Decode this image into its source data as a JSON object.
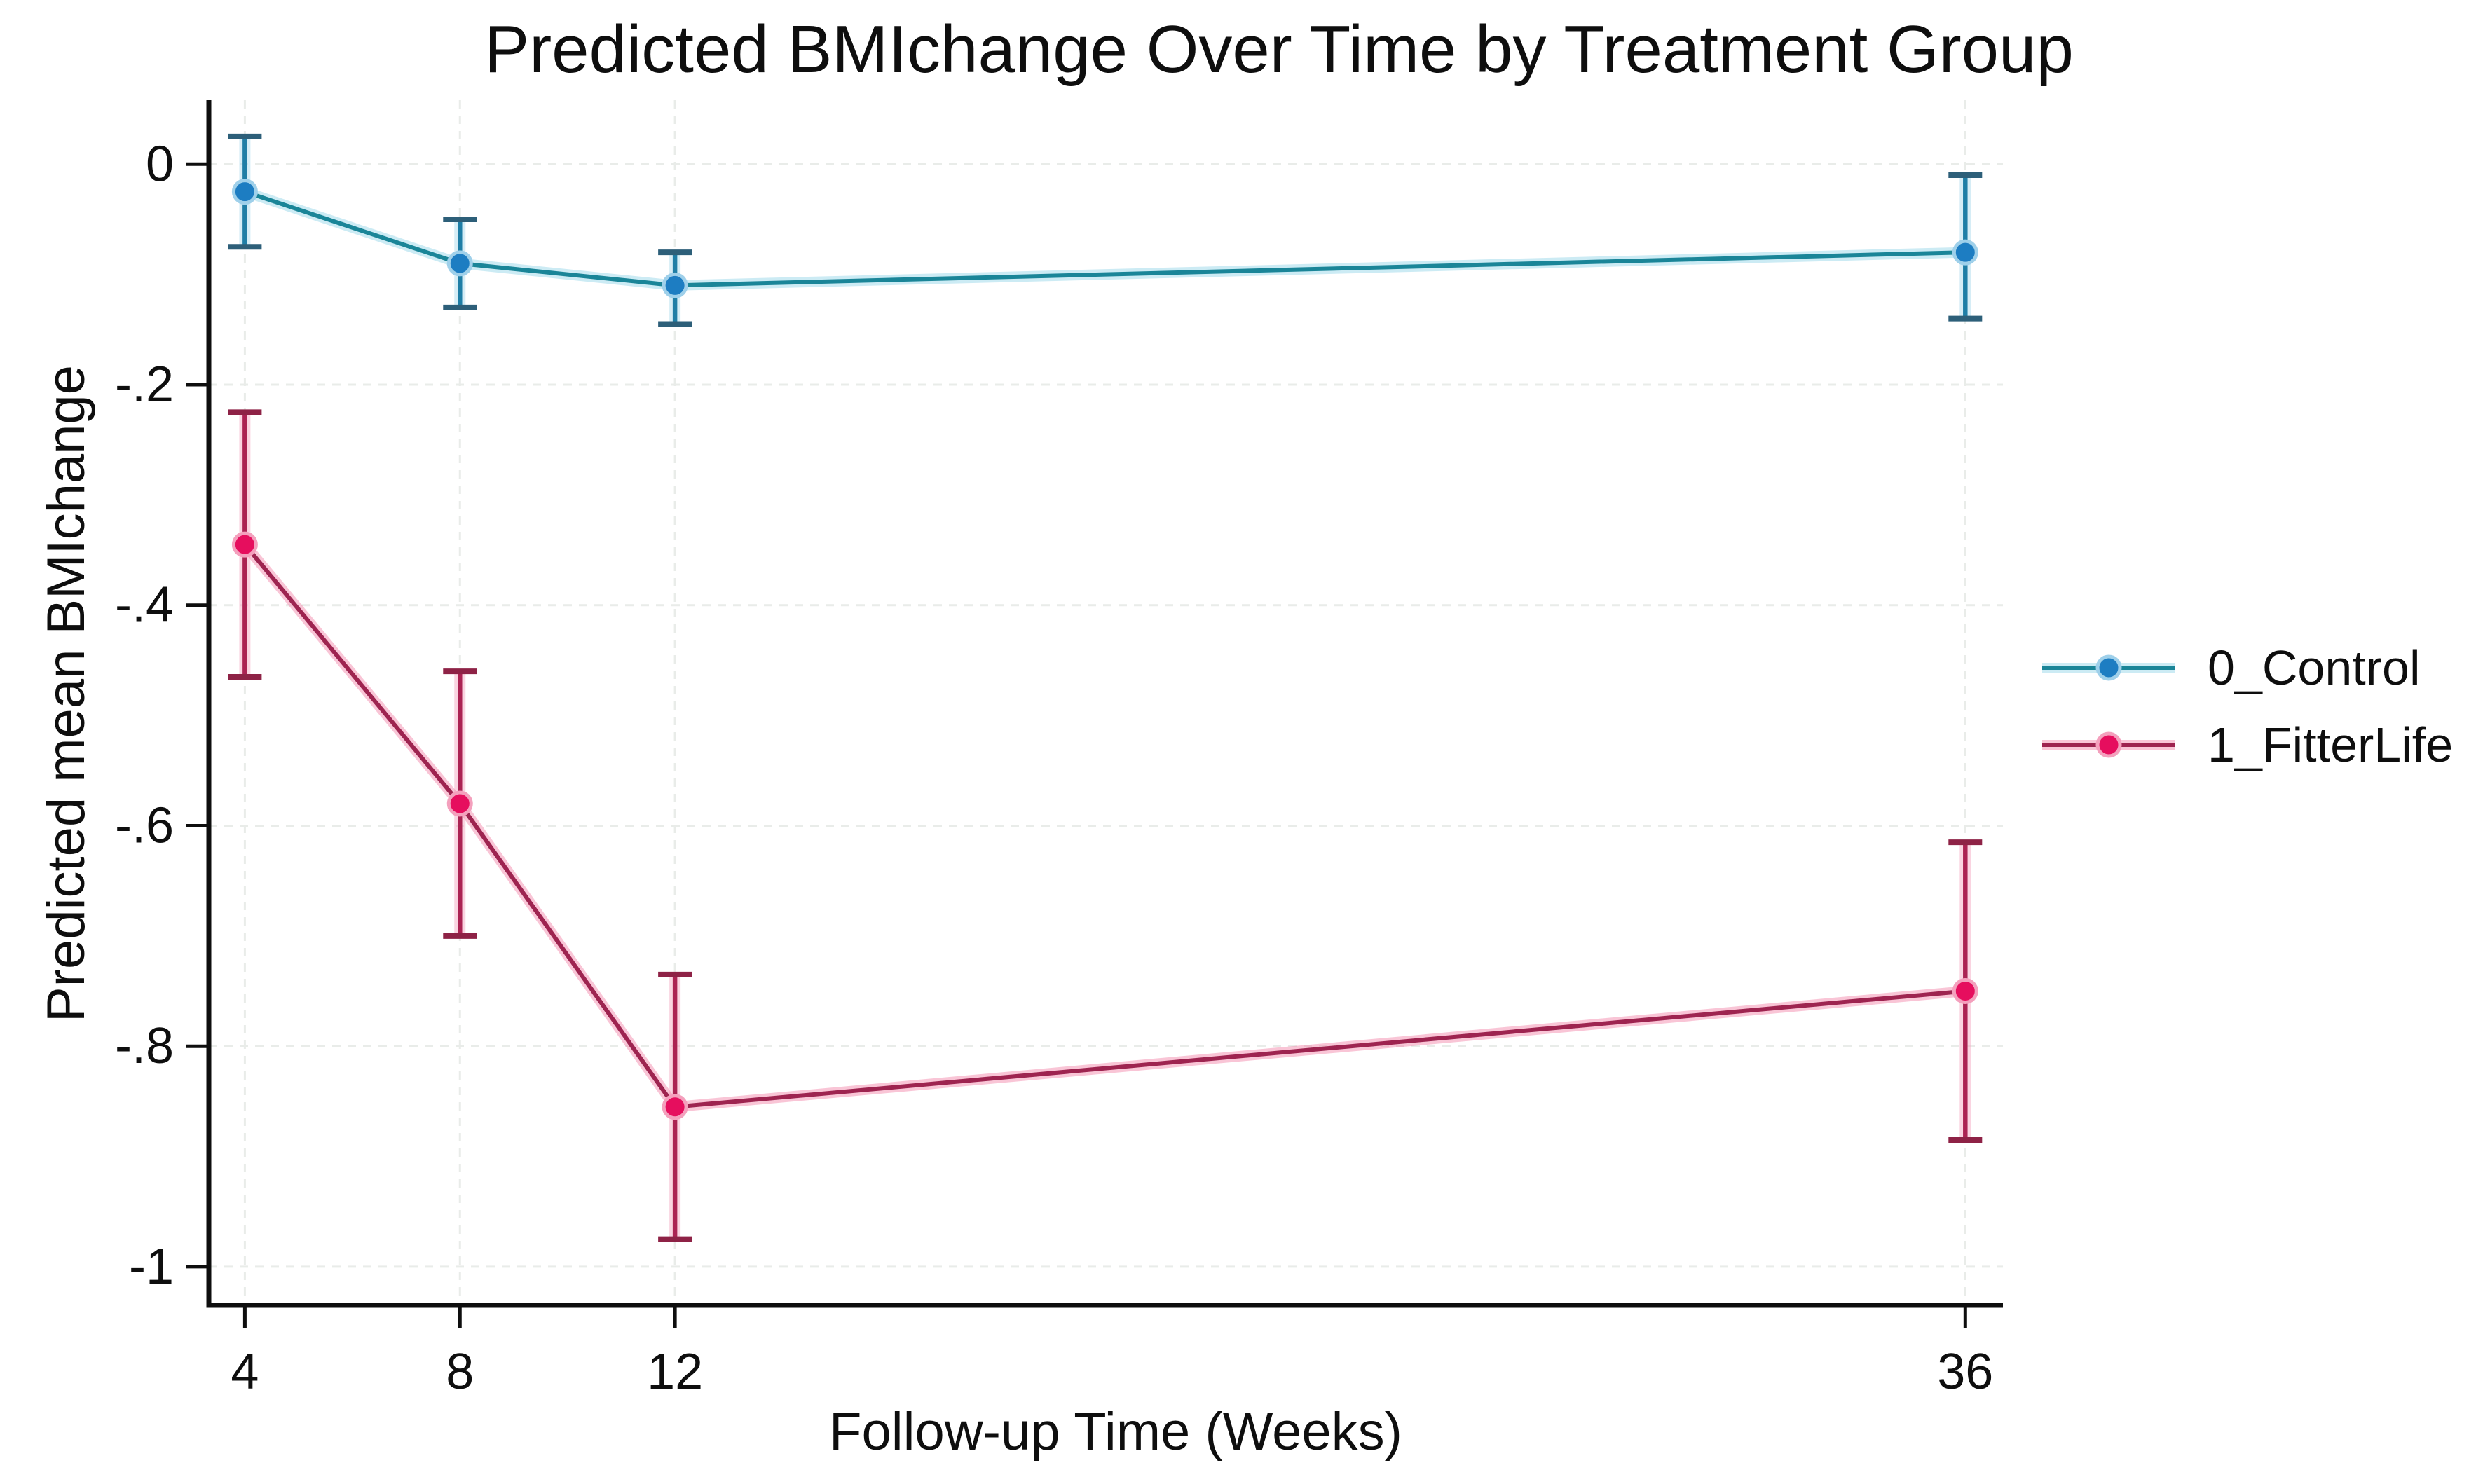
{
  "figure": {
    "background": "#ffffff",
    "axis_color": "#0e0e0e",
    "text_color": "#0e0e0e",
    "gridline_color": "#e9ece9"
  },
  "chart_data": {
    "type": "line",
    "title": "Predicted BMIchange Over Time by Treatment Group",
    "xlabel": "Follow-up Time (Weeks)",
    "ylabel": "Predicted mean BMIchange",
    "x": [
      4,
      8,
      12,
      36
    ],
    "xtick_labels": [
      "4",
      "8",
      "12",
      "36"
    ],
    "ytick_values": [
      0,
      -0.2,
      -0.4,
      -0.6,
      -0.8,
      -1
    ],
    "ytick_labels": [
      "0",
      "-.2",
      "-.4",
      "-.6",
      "-.8",
      "-1"
    ],
    "xlim": [
      3.33,
      36.7
    ],
    "ylim": [
      -1.035,
      0.058
    ],
    "grid": {
      "show": true,
      "style": "dashed",
      "color": "#e9ece9"
    },
    "legend": {
      "position": "right-middle",
      "border": false
    },
    "series": [
      {
        "name": "0_Control",
        "values": [
          -0.025,
          -0.09,
          -0.11,
          -0.08
        ],
        "ci_high": [
          0.025,
          -0.05,
          -0.08,
          -0.01
        ],
        "ci_low": [
          -0.075,
          -0.13,
          -0.145,
          -0.14
        ],
        "colors": {
          "marker": "#1d7dc2",
          "marker_halo": "#9fd0ea",
          "line": "#1a8598",
          "line_glow": "#8fd2e6",
          "error": "#1f7ea6",
          "error_glow": "#a5d8ec",
          "cap": "#2d5f79"
        }
      },
      {
        "name": "1_FitterLife",
        "values": [
          -0.345,
          -0.58,
          -0.855,
          -0.75
        ],
        "ci_high": [
          -0.225,
          -0.46,
          -0.735,
          -0.615
        ],
        "ci_low": [
          -0.465,
          -0.7,
          -0.975,
          -0.885
        ],
        "colors": {
          "marker": "#e60e5e",
          "marker_halo": "#f4a0bd",
          "line": "#9e2450",
          "line_glow": "#f27fa5",
          "error": "#ab2353",
          "error_glow": "#f4a0bd",
          "cap": "#8e2246"
        }
      }
    ]
  }
}
